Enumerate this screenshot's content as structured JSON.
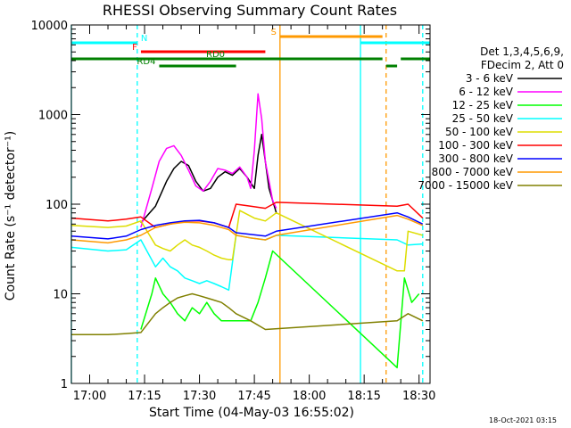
{
  "chart_data": {
    "type": "line",
    "title": "RHESSI Observing Summary Count Rates",
    "xlabel": "Start Time (04-May-03 16:55:02)",
    "ylabel": "Count Rate (s⁻¹ detector⁻¹)",
    "y_scale": "log",
    "ylim": [
      1,
      10000
    ],
    "xlim": [
      "16:55",
      "18:33"
    ],
    "x_ticks": [
      "17:00",
      "17:15",
      "17:30",
      "17:45",
      "18:00",
      "18:15",
      "18:30"
    ],
    "y_ticks": [
      "1",
      "10",
      "100",
      "1000",
      "10000"
    ],
    "grid": false,
    "legend_position": "right",
    "legend_header": [
      "Det 1,3,4,5,6,9,",
      "FDecim 2, Att 0"
    ],
    "series": [
      {
        "name": "3 - 6 keV",
        "color": "#000000",
        "points": [
          [
            "17:14",
            62
          ],
          [
            "17:18",
            95
          ],
          [
            "17:21",
            180
          ],
          [
            "17:23",
            250
          ],
          [
            "17:25",
            300
          ],
          [
            "17:27",
            270
          ],
          [
            "17:29",
            180
          ],
          [
            "17:31",
            140
          ],
          [
            "17:33",
            150
          ],
          [
            "17:35",
            200
          ],
          [
            "17:37",
            230
          ],
          [
            "17:39",
            210
          ],
          [
            "17:41",
            250
          ],
          [
            "17:43",
            200
          ],
          [
            "17:45",
            150
          ],
          [
            "17:46",
            350
          ],
          [
            "17:47",
            600
          ],
          [
            "17:48",
            300
          ],
          [
            "17:49",
            150
          ],
          [
            "17:51",
            80
          ]
        ]
      },
      {
        "name": "6 - 12 keV",
        "color": "#ff00ff",
        "points": [
          [
            "17:14",
            55
          ],
          [
            "17:17",
            150
          ],
          [
            "17:19",
            300
          ],
          [
            "17:21",
            420
          ],
          [
            "17:23",
            450
          ],
          [
            "17:25",
            350
          ],
          [
            "17:27",
            240
          ],
          [
            "17:29",
            160
          ],
          [
            "17:31",
            140
          ],
          [
            "17:33",
            180
          ],
          [
            "17:35",
            250
          ],
          [
            "17:37",
            240
          ],
          [
            "17:39",
            220
          ],
          [
            "17:41",
            260
          ],
          [
            "17:43",
            200
          ],
          [
            "17:44",
            150
          ],
          [
            "17:45",
            400
          ],
          [
            "17:46",
            1700
          ],
          [
            "17:47",
            900
          ],
          [
            "17:48",
            300
          ],
          [
            "17:50",
            110
          ],
          [
            "17:51",
            90
          ]
        ]
      },
      {
        "name": "12 - 25 keV",
        "color": "#00ff00",
        "points": [
          [
            "17:14",
            4
          ],
          [
            "17:17",
            10
          ],
          [
            "17:18",
            15
          ],
          [
            "17:20",
            10
          ],
          [
            "17:22",
            8
          ],
          [
            "17:24",
            6
          ],
          [
            "17:26",
            5
          ],
          [
            "17:28",
            7
          ],
          [
            "17:30",
            6
          ],
          [
            "17:32",
            8
          ],
          [
            "17:34",
            6
          ],
          [
            "17:36",
            5
          ],
          [
            "17:38",
            5
          ],
          [
            "17:41",
            5
          ],
          [
            "17:44",
            5
          ],
          [
            "17:46",
            8
          ],
          [
            "17:48",
            15
          ],
          [
            "17:50",
            30
          ],
          [
            "18:24",
            1.5
          ],
          [
            "18:26",
            15
          ],
          [
            "18:28",
            8
          ],
          [
            "18:30",
            10
          ]
        ]
      },
      {
        "name": "25 - 50 keV",
        "color": "#00ffff",
        "points": [
          [
            "16:55",
            33
          ],
          [
            "17:05",
            30
          ],
          [
            "17:10",
            31
          ],
          [
            "17:14",
            40
          ],
          [
            "17:18",
            20
          ],
          [
            "17:20",
            25
          ],
          [
            "17:22",
            20
          ],
          [
            "17:24",
            18
          ],
          [
            "17:26",
            15
          ],
          [
            "17:28",
            14
          ],
          [
            "17:30",
            13
          ],
          [
            "17:32",
            14
          ],
          [
            "17:34",
            13
          ],
          [
            "17:36",
            12
          ],
          [
            "17:38",
            11
          ],
          [
            "17:40",
            45
          ],
          [
            "17:44",
            42
          ],
          [
            "17:48",
            40
          ],
          [
            "17:51",
            45
          ],
          [
            "18:24",
            40
          ],
          [
            "18:27",
            35
          ],
          [
            "18:31",
            36
          ]
        ]
      },
      {
        "name": "50 - 100 keV",
        "color": "#dddd00",
        "points": [
          [
            "16:55",
            58
          ],
          [
            "17:05",
            55
          ],
          [
            "17:10",
            57
          ],
          [
            "17:14",
            65
          ],
          [
            "17:18",
            35
          ],
          [
            "17:20",
            32
          ],
          [
            "17:22",
            30
          ],
          [
            "17:24",
            35
          ],
          [
            "17:26",
            40
          ],
          [
            "17:28",
            35
          ],
          [
            "17:30",
            33
          ],
          [
            "17:32",
            30
          ],
          [
            "17:34",
            27
          ],
          [
            "17:36",
            25
          ],
          [
            "17:38",
            24
          ],
          [
            "17:39",
            24
          ],
          [
            "17:41",
            85
          ],
          [
            "17:45",
            70
          ],
          [
            "17:48",
            65
          ],
          [
            "17:51",
            80
          ],
          [
            "18:24",
            18
          ],
          [
            "18:26",
            18
          ],
          [
            "18:27",
            50
          ],
          [
            "18:31",
            45
          ]
        ]
      },
      {
        "name": "100 - 300 keV",
        "color": "#ff0000",
        "points": [
          [
            "16:55",
            70
          ],
          [
            "17:05",
            65
          ],
          [
            "17:10",
            68
          ],
          [
            "17:14",
            72
          ],
          [
            "17:18",
            55
          ],
          [
            "17:22",
            60
          ],
          [
            "17:26",
            65
          ],
          [
            "17:30",
            65
          ],
          [
            "17:34",
            62
          ],
          [
            "17:38",
            55
          ],
          [
            "17:40",
            100
          ],
          [
            "17:44",
            95
          ],
          [
            "17:48",
            90
          ],
          [
            "17:51",
            105
          ],
          [
            "18:24",
            95
          ],
          [
            "18:27",
            100
          ],
          [
            "18:31",
            70
          ]
        ]
      },
      {
        "name": "300 - 800 keV",
        "color": "#0000ff",
        "points": [
          [
            "16:55",
            44
          ],
          [
            "17:05",
            41
          ],
          [
            "17:10",
            44
          ],
          [
            "17:14",
            52
          ],
          [
            "17:18",
            58
          ],
          [
            "17:22",
            62
          ],
          [
            "17:26",
            65
          ],
          [
            "17:30",
            66
          ],
          [
            "17:34",
            62
          ],
          [
            "17:38",
            55
          ],
          [
            "17:40",
            48
          ],
          [
            "17:44",
            46
          ],
          [
            "17:48",
            44
          ],
          [
            "17:51",
            50
          ],
          [
            "18:24",
            80
          ],
          [
            "18:27",
            72
          ],
          [
            "18:31",
            60
          ]
        ]
      },
      {
        "name": "800 - 7000 keV",
        "color": "#ff9900",
        "points": [
          [
            "16:55",
            40
          ],
          [
            "17:05",
            37
          ],
          [
            "17:10",
            40
          ],
          [
            "17:14",
            45
          ],
          [
            "17:18",
            55
          ],
          [
            "17:22",
            60
          ],
          [
            "17:26",
            63
          ],
          [
            "17:30",
            62
          ],
          [
            "17:34",
            58
          ],
          [
            "17:38",
            52
          ],
          [
            "17:40",
            45
          ],
          [
            "17:44",
            42
          ],
          [
            "17:48",
            40
          ],
          [
            "17:51",
            45
          ],
          [
            "18:24",
            75
          ],
          [
            "18:27",
            68
          ],
          [
            "18:31",
            58
          ]
        ]
      },
      {
        "name": "7000 - 15000 keV",
        "color": "#808000",
        "points": [
          [
            "16:55",
            3.5
          ],
          [
            "17:05",
            3.5
          ],
          [
            "17:10",
            3.6
          ],
          [
            "17:14",
            3.7
          ],
          [
            "17:18",
            6
          ],
          [
            "17:20",
            7
          ],
          [
            "17:22",
            8
          ],
          [
            "17:24",
            9
          ],
          [
            "17:26",
            9.5
          ],
          [
            "17:28",
            10
          ],
          [
            "17:30",
            9.5
          ],
          [
            "17:32",
            9
          ],
          [
            "17:34",
            8.5
          ],
          [
            "17:36",
            8
          ],
          [
            "17:38",
            7
          ],
          [
            "17:40",
            6
          ],
          [
            "17:44",
            5
          ],
          [
            "17:48",
            4
          ],
          [
            "18:24",
            5
          ],
          [
            "18:27",
            6
          ],
          [
            "18:31",
            5
          ]
        ]
      }
    ],
    "vertical_markers": [
      {
        "time": "16:55",
        "color": "#00ffff",
        "style": "solid"
      },
      {
        "time": "17:13",
        "color": "#00ffff",
        "style": "dashed"
      },
      {
        "time": "17:52",
        "color": "#ff9900",
        "style": "solid"
      },
      {
        "time": "18:14",
        "color": "#00ffff",
        "style": "solid"
      },
      {
        "time": "18:21",
        "color": "#ff9900",
        "style": "dashed"
      },
      {
        "time": "18:31",
        "color": "#00ffff",
        "style": "dashed"
      }
    ],
    "flag_bars": [
      {
        "label": "N",
        "color": "#00ffff",
        "segments": [
          [
            "16:55",
            "17:13"
          ],
          [
            "18:14",
            "18:33"
          ]
        ]
      },
      {
        "label": "S",
        "color": "#ff9900",
        "segments": [
          [
            "17:52",
            "18:20"
          ]
        ]
      },
      {
        "label": "F",
        "color": "#ff0000",
        "segments": [
          [
            "17:14",
            "17:48"
          ]
        ]
      },
      {
        "label": "RD0",
        "color": "#008000",
        "segments": [
          [
            "16:55",
            "18:20"
          ],
          [
            "18:25",
            "18:33"
          ]
        ]
      },
      {
        "label": "RD4",
        "color": "#008000",
        "segments": [
          [
            "17:19",
            "17:40"
          ],
          [
            "18:21",
            "18:24"
          ]
        ]
      }
    ]
  },
  "footer": {
    "date": "18-Oct-2021 03:15"
  }
}
